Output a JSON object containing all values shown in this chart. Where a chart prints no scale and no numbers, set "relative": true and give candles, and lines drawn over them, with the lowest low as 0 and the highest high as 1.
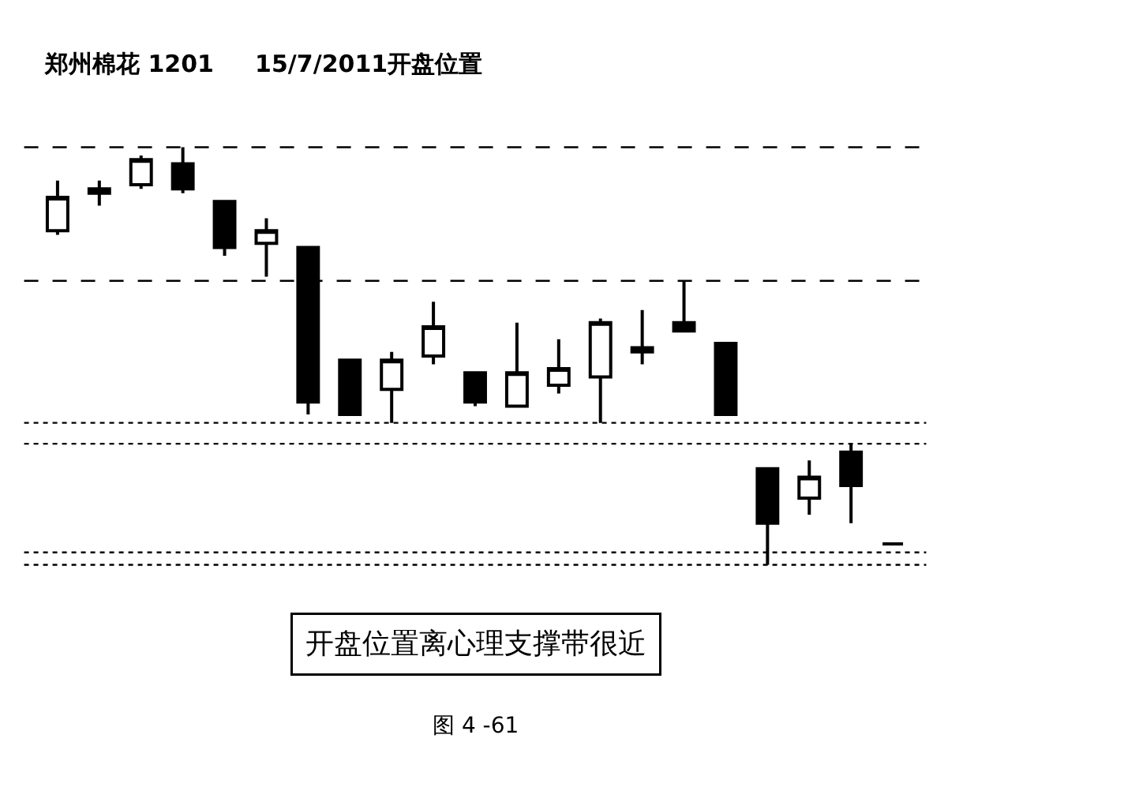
{
  "chart_data": {
    "type": "candlestick",
    "title": "郑州棉花 1201     15/7/2011开盘位置",
    "relative": true,
    "legend": false,
    "categories": [
      null,
      null,
      null,
      null,
      null,
      null,
      null,
      null,
      null,
      null,
      null,
      null,
      null,
      null,
      null,
      null,
      null,
      null,
      null,
      null,
      null
    ],
    "ohlc": [
      [
        0.8,
        0.92,
        0.79,
        0.88
      ],
      [
        0.9,
        0.92,
        0.86,
        0.89
      ],
      [
        0.91,
        0.98,
        0.9,
        0.97
      ],
      [
        0.96,
        1.0,
        0.89,
        0.9
      ],
      [
        0.87,
        0.87,
        0.74,
        0.76
      ],
      [
        0.77,
        0.83,
        0.69,
        0.8
      ],
      [
        0.76,
        0.76,
        0.36,
        0.39
      ],
      [
        0.49,
        0.49,
        0.36,
        0.36
      ],
      [
        0.42,
        0.51,
        0.34,
        0.49
      ],
      [
        0.5,
        0.63,
        0.48,
        0.57
      ],
      [
        0.46,
        0.46,
        0.38,
        0.39
      ],
      [
        0.38,
        0.58,
        0.38,
        0.46
      ],
      [
        0.43,
        0.54,
        0.41,
        0.47
      ],
      [
        0.45,
        0.59,
        0.34,
        0.58
      ],
      [
        0.51,
        0.61,
        0.48,
        0.52
      ],
      [
        0.58,
        0.68,
        0.56,
        0.56
      ],
      [
        0.53,
        0.53,
        0.36,
        0.36
      ],
      [
        0.23,
        0.23,
        0.0,
        0.1
      ],
      [
        0.16,
        0.25,
        0.12,
        0.21
      ],
      [
        0.27,
        0.29,
        0.1,
        0.19
      ],
      [
        0.05,
        0.05,
        0.05,
        0.05
      ]
    ],
    "ref_lines": [
      {
        "axis": "y",
        "value": 0.34,
        "label": null,
        "line_style": "dotted",
        "color": "#000000"
      },
      {
        "axis": "y",
        "value": 0.29,
        "label": null,
        "line_style": "dotted",
        "color": "#000000"
      },
      {
        "axis": "y",
        "value": 0.03,
        "label": null,
        "line_style": "dotted",
        "color": "#000000"
      },
      {
        "axis": "y",
        "value": 0.0,
        "label": null,
        "line_style": "dotted",
        "color": "#000000"
      },
      {
        "axis": "y",
        "value": 1.0,
        "label": null,
        "line_style": "dashed",
        "color": "#000000"
      },
      {
        "axis": "y",
        "value": 0.68,
        "label": null,
        "line_style": "dashed",
        "color": "#000000"
      }
    ],
    "annotations": [
      "开盘位置离心理支撑带很近",
      "图 4 -61"
    ]
  }
}
